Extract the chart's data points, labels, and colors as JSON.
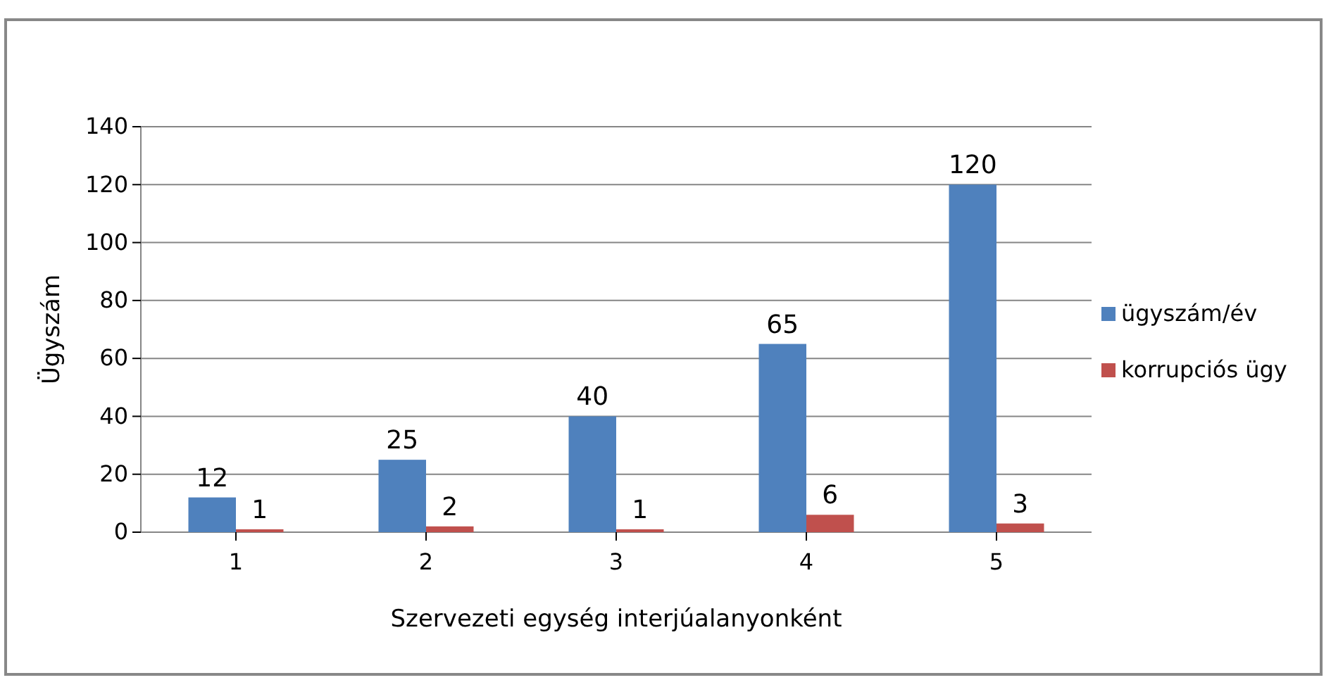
{
  "chart_data": {
    "type": "bar",
    "xlabel": "Szervezeti egység interjúalanyonként",
    "ylabel": "Ügyszám",
    "categories": [
      "1",
      "2",
      "3",
      "4",
      "5"
    ],
    "series": [
      {
        "name": "ügyszám/év",
        "color": "#4f81bd",
        "values": [
          12,
          25,
          40,
          65,
          120
        ]
      },
      {
        "name": "korrupciós ügy",
        "color": "#c0504d",
        "values": [
          1,
          2,
          1,
          6,
          3
        ]
      }
    ],
    "ylim": [
      0,
      140
    ],
    "yticks": [
      0,
      20,
      40,
      60,
      80,
      100,
      120,
      140
    ],
    "grid": "y",
    "legend": "right",
    "data_labels": true
  }
}
